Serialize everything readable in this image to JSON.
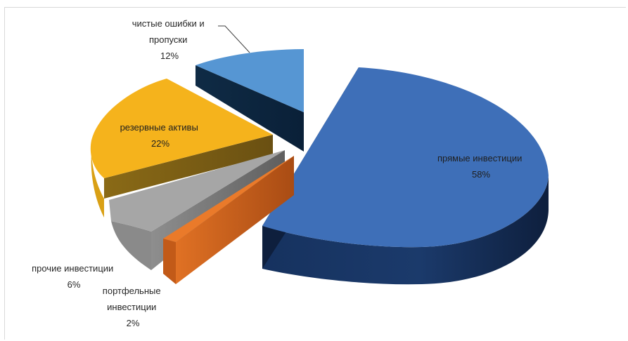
{
  "chart_data": {
    "type": "pie",
    "style": "3d-exploded",
    "title": "",
    "slices": [
      {
        "key": "direct",
        "label_lines": [
          "прямые инвестиции"
        ],
        "percent_text": "58%",
        "value": 58,
        "color": "#3e6fb8"
      },
      {
        "key": "portfolio",
        "label_lines": [
          "портфельные",
          "инвестиции"
        ],
        "percent_text": "2%",
        "value": 2,
        "color": "#e36c1f"
      },
      {
        "key": "other",
        "label_lines": [
          "прочие инвестиции"
        ],
        "percent_text": "6%",
        "value": 6,
        "color": "#a6a6a6"
      },
      {
        "key": "reserve",
        "label_lines": [
          "резервные активы"
        ],
        "percent_text": "22%",
        "value": 22,
        "color": "#f5b31c"
      },
      {
        "key": "errors",
        "label_lines": [
          "чистые ошибки и",
          "пропуски"
        ],
        "percent_text": "12%",
        "value": 12,
        "color": "#5b9bd5"
      }
    ],
    "legend": "none"
  }
}
